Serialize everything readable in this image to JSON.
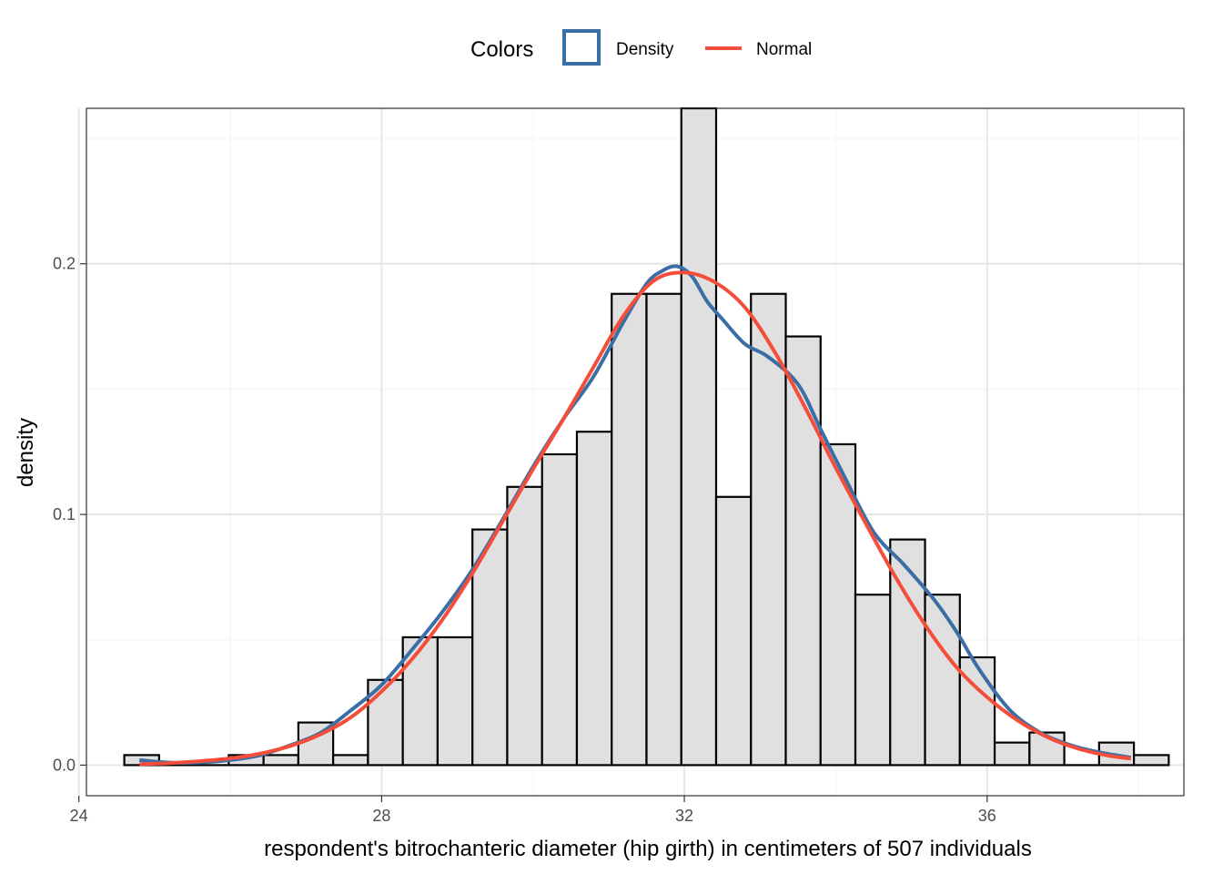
{
  "chart_data": {
    "type": "bar",
    "subtype": "histogram-with-density-curves",
    "title": "",
    "xlabel": "respondent's bitrochanteric diameter (hip girth) in centimeters of 507 individuals",
    "ylabel": "density",
    "xlim": [
      24.1,
      38.6
    ],
    "ylim": [
      -0.0122,
      0.262
    ],
    "x_ticks": [
      24,
      28,
      32,
      36
    ],
    "x_tick_labels": [
      "24",
      "28",
      "32",
      "36"
    ],
    "y_ticks": [
      0.0,
      0.1,
      0.2
    ],
    "y_tick_labels": [
      "0.0",
      "0.1",
      "0.2"
    ],
    "grid": true,
    "bin_width": 0.46,
    "bins": [
      {
        "start": 24.6,
        "end": 25.06,
        "density": 0.004
      },
      {
        "start": 25.06,
        "end": 25.52,
        "density": 0.0
      },
      {
        "start": 25.52,
        "end": 25.98,
        "density": 0.0
      },
      {
        "start": 25.98,
        "end": 26.44,
        "density": 0.004
      },
      {
        "start": 26.44,
        "end": 26.9,
        "density": 0.004
      },
      {
        "start": 26.9,
        "end": 27.36,
        "density": 0.017
      },
      {
        "start": 27.36,
        "end": 27.82,
        "density": 0.004
      },
      {
        "start": 27.82,
        "end": 28.28,
        "density": 0.034
      },
      {
        "start": 28.28,
        "end": 28.74,
        "density": 0.051
      },
      {
        "start": 28.74,
        "end": 29.2,
        "density": 0.051
      },
      {
        "start": 29.2,
        "end": 29.66,
        "density": 0.094
      },
      {
        "start": 29.66,
        "end": 30.12,
        "density": 0.111
      },
      {
        "start": 30.12,
        "end": 30.58,
        "density": 0.124
      },
      {
        "start": 30.58,
        "end": 31.04,
        "density": 0.133
      },
      {
        "start": 31.04,
        "end": 31.5,
        "density": 0.188
      },
      {
        "start": 31.5,
        "end": 31.96,
        "density": 0.188
      },
      {
        "start": 31.96,
        "end": 32.42,
        "density": 0.262
      },
      {
        "start": 32.42,
        "end": 32.88,
        "density": 0.107
      },
      {
        "start": 32.88,
        "end": 33.34,
        "density": 0.188
      },
      {
        "start": 33.34,
        "end": 33.8,
        "density": 0.171
      },
      {
        "start": 33.8,
        "end": 34.26,
        "density": 0.128
      },
      {
        "start": 34.26,
        "end": 34.72,
        "density": 0.068
      },
      {
        "start": 34.72,
        "end": 35.18,
        "density": 0.09
      },
      {
        "start": 35.18,
        "end": 35.64,
        "density": 0.068
      },
      {
        "start": 35.64,
        "end": 36.1,
        "density": 0.043
      },
      {
        "start": 36.1,
        "end": 36.56,
        "density": 0.009
      },
      {
        "start": 36.56,
        "end": 37.02,
        "density": 0.013
      },
      {
        "start": 37.02,
        "end": 37.48,
        "density": 0.0
      },
      {
        "start": 37.48,
        "end": 37.94,
        "density": 0.009
      },
      {
        "start": 37.94,
        "end": 38.4,
        "density": 0.004
      }
    ],
    "series": [
      {
        "name": "Density",
        "color": "#3a6ea5",
        "x": [
          24.8,
          25.2,
          25.6,
          26.0,
          26.4,
          26.8,
          27.2,
          27.6,
          28.0,
          28.4,
          28.8,
          29.2,
          29.6,
          30.0,
          30.4,
          30.8,
          31.2,
          31.5,
          31.7,
          31.9,
          32.1,
          32.3,
          32.5,
          32.8,
          33.1,
          33.5,
          33.8,
          34.1,
          34.5,
          34.9,
          35.3,
          35.6,
          35.9,
          36.3,
          36.7,
          37.1,
          37.5,
          37.9
        ],
        "values": [
          0.002,
          0.001,
          0.001,
          0.002,
          0.004,
          0.008,
          0.013,
          0.022,
          0.032,
          0.046,
          0.061,
          0.078,
          0.098,
          0.119,
          0.138,
          0.155,
          0.177,
          0.192,
          0.197,
          0.199,
          0.195,
          0.185,
          0.178,
          0.168,
          0.163,
          0.152,
          0.134,
          0.116,
          0.093,
          0.08,
          0.066,
          0.053,
          0.038,
          0.022,
          0.013,
          0.008,
          0.005,
          0.003
        ]
      },
      {
        "name": "Normal",
        "color": "#f44e3b",
        "mean": 31.97,
        "sd": 2.03,
        "x": [
          24.8,
          25.2,
          25.6,
          26.0,
          26.4,
          26.8,
          27.2,
          27.6,
          28.0,
          28.4,
          28.8,
          29.2,
          29.6,
          30.0,
          30.4,
          30.8,
          31.2,
          31.6,
          32.0,
          32.4,
          32.8,
          33.2,
          33.6,
          34.0,
          34.4,
          34.8,
          35.2,
          35.6,
          36.0,
          36.4,
          36.8,
          37.2,
          37.6,
          37.9
        ],
        "values": [
          0.0004,
          0.0008,
          0.0016,
          0.0027,
          0.0046,
          0.0077,
          0.0124,
          0.0192,
          0.0294,
          0.0422,
          0.0579,
          0.0765,
          0.0972,
          0.118,
          0.138,
          0.1588,
          0.1794,
          0.1933,
          0.1965,
          0.1927,
          0.1826,
          0.1645,
          0.1424,
          0.1186,
          0.0962,
          0.0745,
          0.0551,
          0.0389,
          0.0271,
          0.0179,
          0.0111,
          0.0066,
          0.0038,
          0.0026
        ]
      }
    ],
    "legend": {
      "title": "Colors",
      "placement": "top",
      "items": [
        {
          "label": "Density",
          "key": "box",
          "color": "#3a6ea5"
        },
        {
          "label": "Normal",
          "key": "line",
          "color": "#f44e3b"
        }
      ]
    },
    "colors": {
      "bar_fill": "#e0e0e0",
      "bar_outline": "#000000",
      "grid_major": "#e6e6e6",
      "grid_minor": "#f2f2f2",
      "panel_border": "#333333"
    }
  }
}
